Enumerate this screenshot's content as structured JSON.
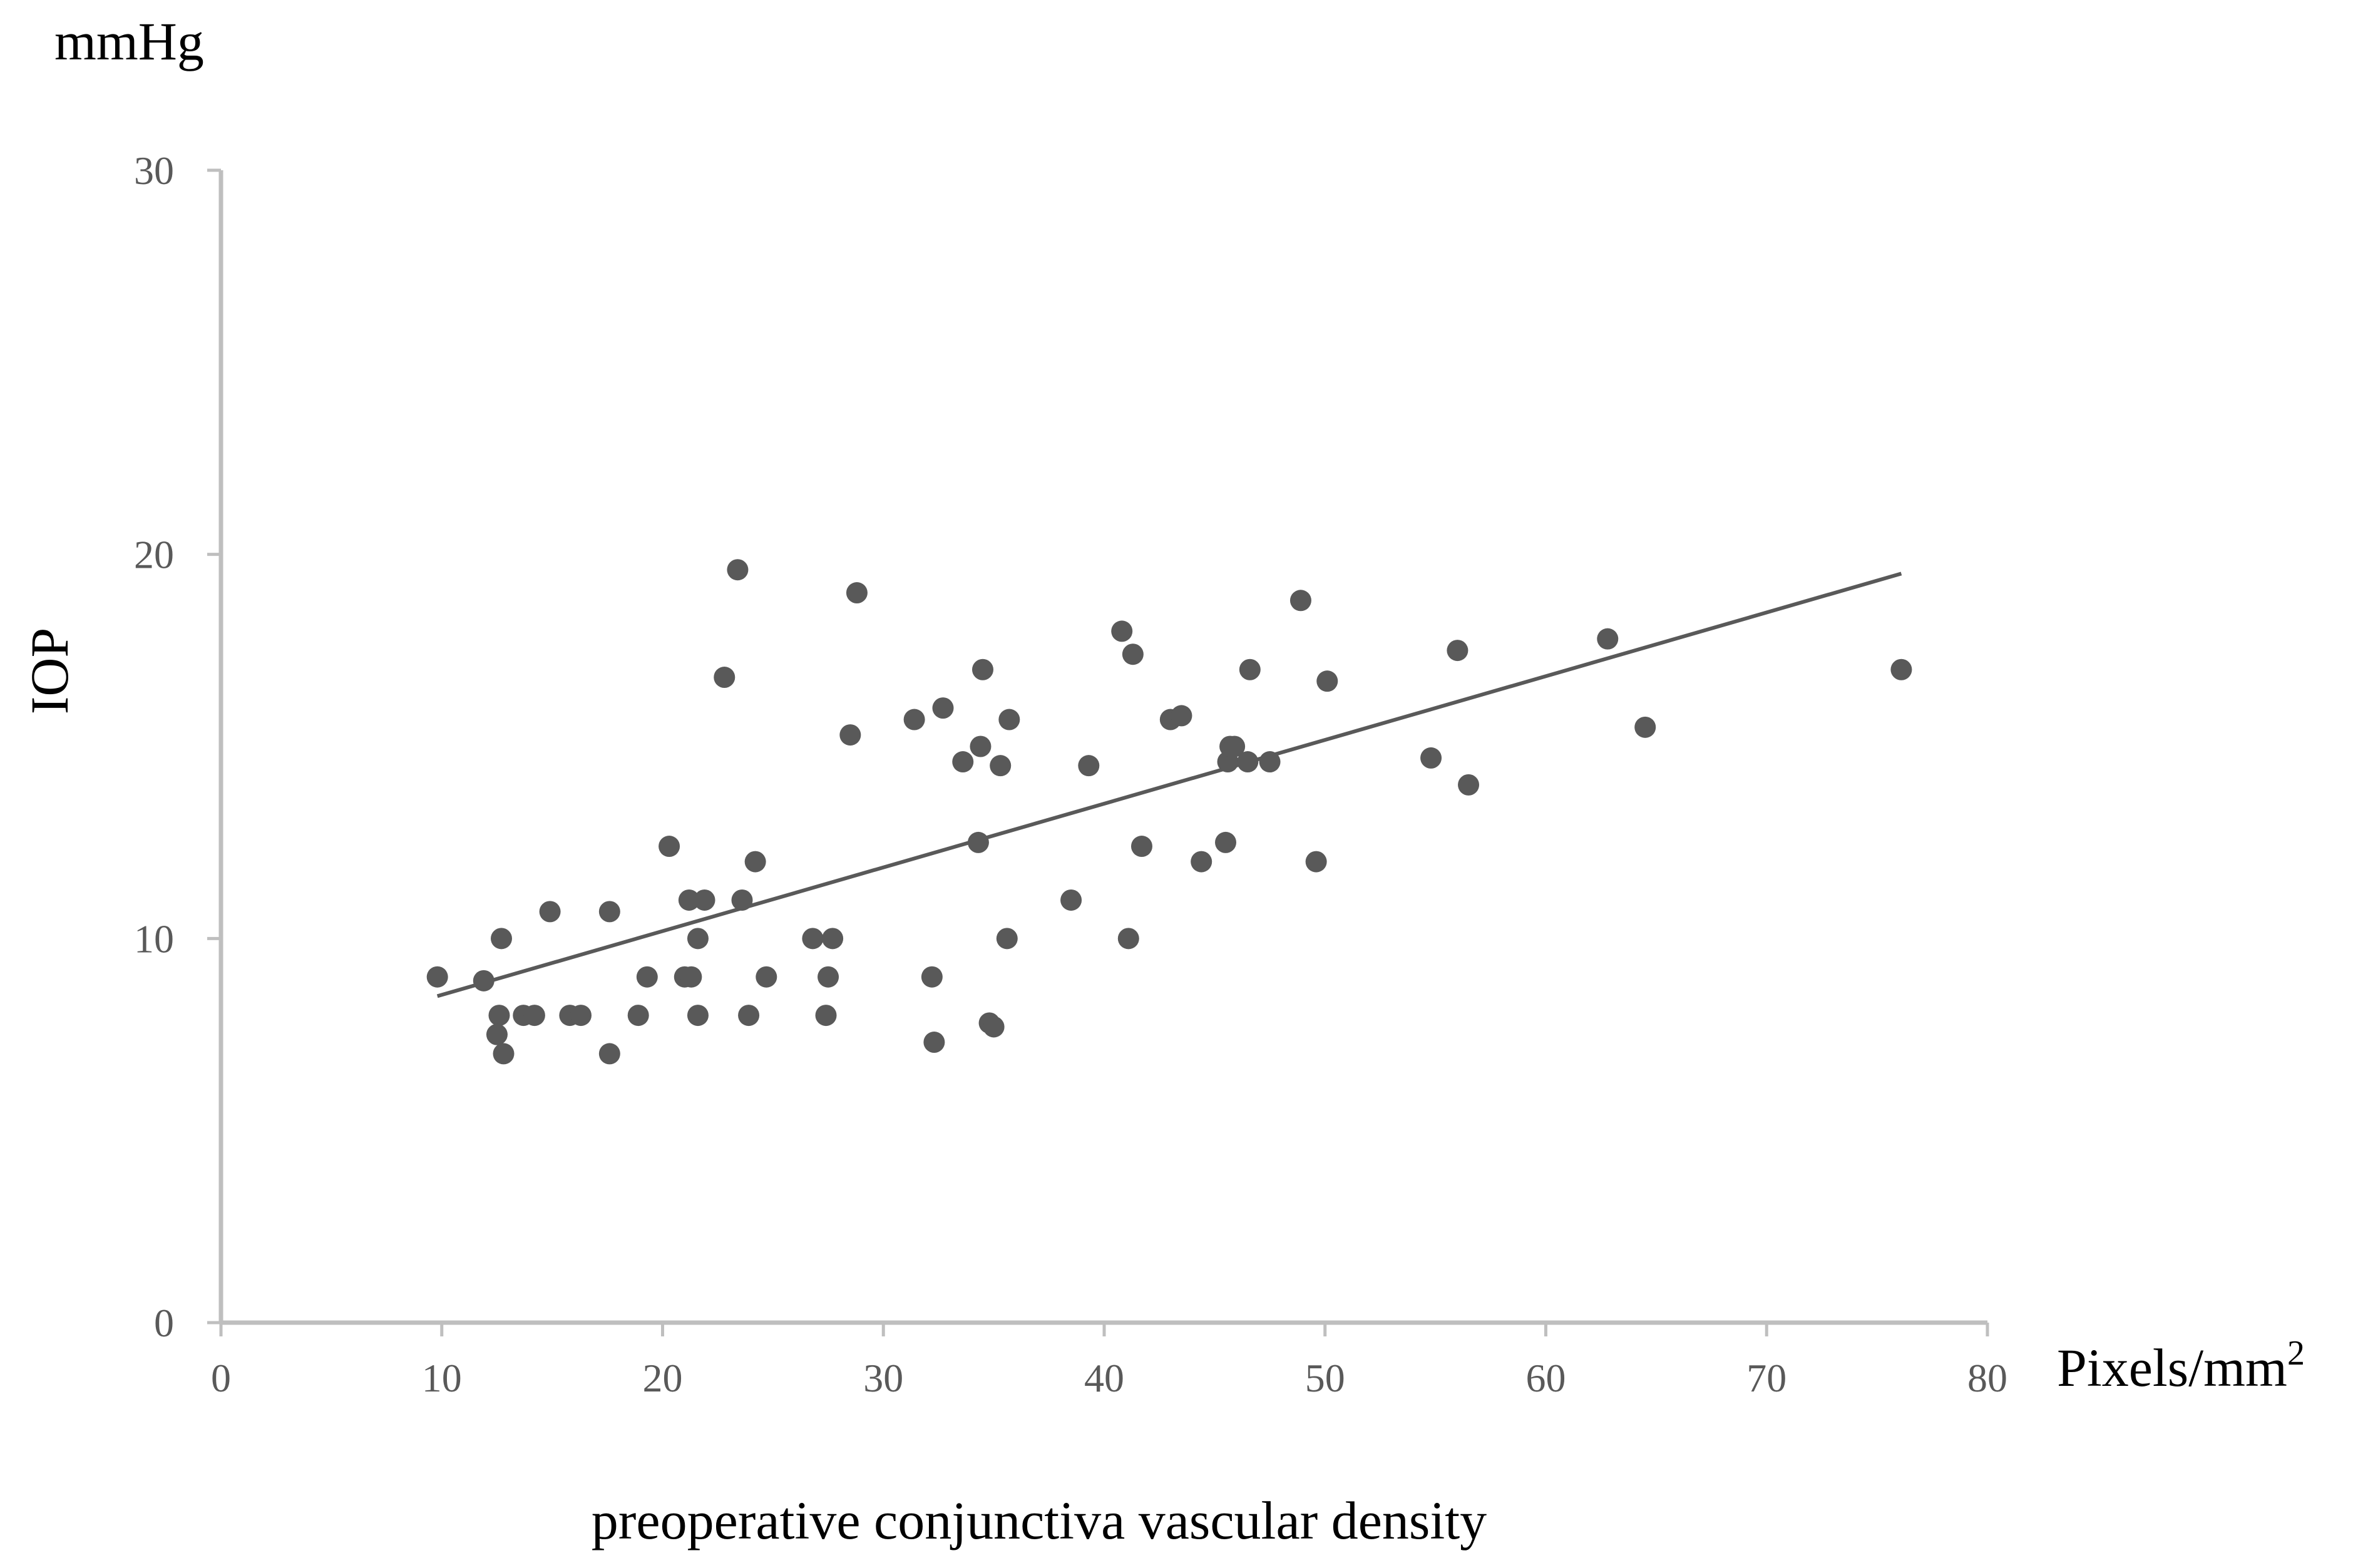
{
  "chart_data": {
    "type": "scatter",
    "title": "",
    "xlabel": "preoperative conjunctiva vascular density",
    "ylabel": "IOP",
    "x_unit_base": "Pixels/mm",
    "x_unit_exp": "2",
    "y_unit": "mmHg",
    "xlim": [
      0,
      80
    ],
    "ylim": [
      0,
      30
    ],
    "x_ticks": [
      "0",
      "10",
      "20",
      "30",
      "40",
      "50",
      "60",
      "70",
      "80"
    ],
    "y_ticks": [
      "0",
      "10",
      "20",
      "30"
    ],
    "grid": false,
    "legend": "none",
    "colors": {
      "points": "#595959",
      "trendline": "#595959",
      "axis": "#bfbfbf"
    },
    "series": [
      {
        "points": [
          [
            9.8,
            9.0
          ],
          [
            11.9,
            8.9
          ],
          [
            12.7,
            10.0
          ],
          [
            12.6,
            8.0
          ],
          [
            12.5,
            7.5
          ],
          [
            12.8,
            7.0
          ],
          [
            13.7,
            8.0
          ],
          [
            14.2,
            8.0
          ],
          [
            14.9,
            10.7
          ],
          [
            15.8,
            8.0
          ],
          [
            16.3,
            8.0
          ],
          [
            17.6,
            10.7
          ],
          [
            17.6,
            7.0
          ],
          [
            18.9,
            8.0
          ],
          [
            19.3,
            9.0
          ],
          [
            20.3,
            12.4
          ],
          [
            21.0,
            9.0
          ],
          [
            21.2,
            11.0
          ],
          [
            21.3,
            9.0
          ],
          [
            21.6,
            10.0
          ],
          [
            21.6,
            8.0
          ],
          [
            21.9,
            11.0
          ],
          [
            22.8,
            16.8
          ],
          [
            23.4,
            19.6
          ],
          [
            23.6,
            11.0
          ],
          [
            23.9,
            8.0
          ],
          [
            24.2,
            12.0
          ],
          [
            24.7,
            9.0
          ],
          [
            26.8,
            10.0
          ],
          [
            27.4,
            8.0
          ],
          [
            27.5,
            9.0
          ],
          [
            27.7,
            10.0
          ],
          [
            28.5,
            15.3
          ],
          [
            28.8,
            19.0
          ],
          [
            31.4,
            15.7
          ],
          [
            32.2,
            9.0
          ],
          [
            32.3,
            7.3
          ],
          [
            32.7,
            16.0
          ],
          [
            33.6,
            14.6
          ],
          [
            34.3,
            12.5
          ],
          [
            34.4,
            15.0
          ],
          [
            34.5,
            17.0
          ],
          [
            34.8,
            7.8
          ],
          [
            35.0,
            7.7
          ],
          [
            35.3,
            14.5
          ],
          [
            35.6,
            10.0
          ],
          [
            35.7,
            15.7
          ],
          [
            38.5,
            11.0
          ],
          [
            39.3,
            14.5
          ],
          [
            40.8,
            18.0
          ],
          [
            41.1,
            10.0
          ],
          [
            41.3,
            17.4
          ],
          [
            41.7,
            12.4
          ],
          [
            43.0,
            15.7
          ],
          [
            43.5,
            15.8
          ],
          [
            44.4,
            12.0
          ],
          [
            45.5,
            12.5
          ],
          [
            45.6,
            14.6
          ],
          [
            45.7,
            15.0
          ],
          [
            45.9,
            15.0
          ],
          [
            46.5,
            14.6
          ],
          [
            46.6,
            17.0
          ],
          [
            47.5,
            14.6
          ],
          [
            48.9,
            18.8
          ],
          [
            49.6,
            12.0
          ],
          [
            50.1,
            16.7
          ],
          [
            54.8,
            14.7
          ],
          [
            56.0,
            17.5
          ],
          [
            56.5,
            14.0
          ],
          [
            62.8,
            17.8
          ],
          [
            64.5,
            15.5
          ],
          [
            76.1,
            17.0
          ]
        ]
      }
    ],
    "trendline": {
      "x": [
        9.8,
        76.1
      ],
      "y": [
        8.5,
        19.5
      ]
    }
  }
}
